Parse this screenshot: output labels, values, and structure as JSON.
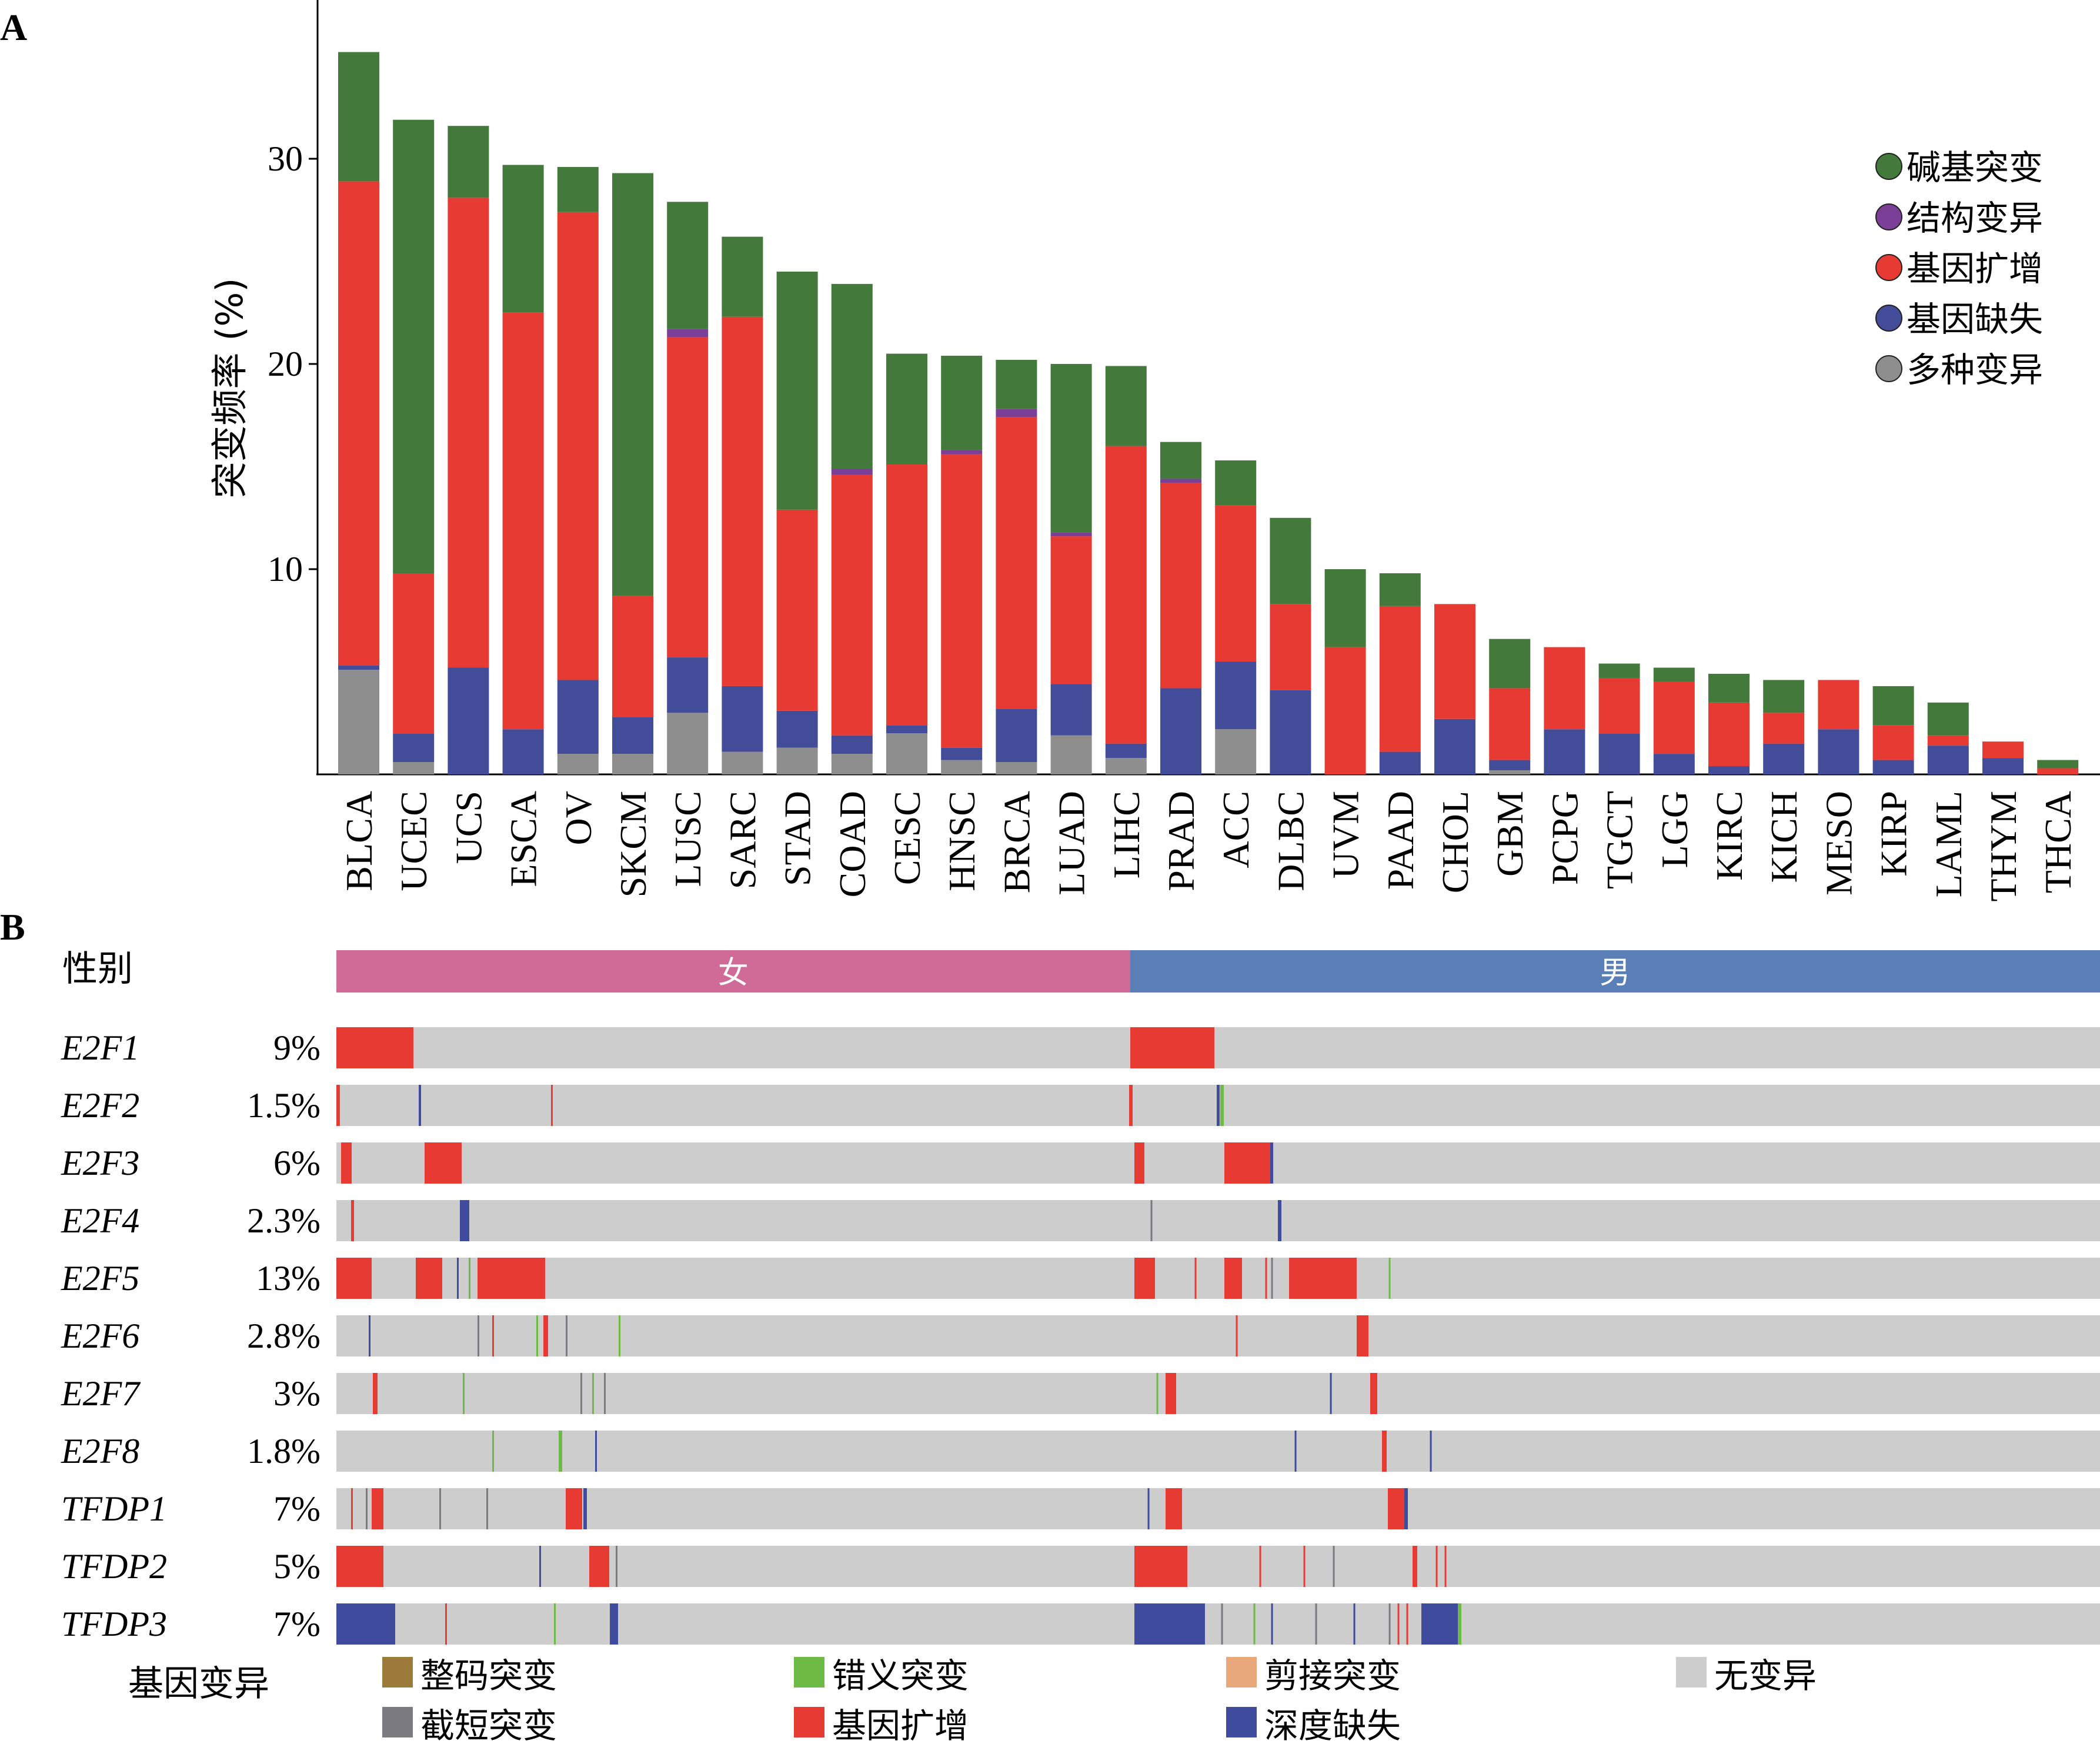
{
  "panel_a_label": "A",
  "panel_b_label": "B",
  "colors": {
    "base_mutation": "#437a3c",
    "structural_variant": "#7b3f98",
    "amplification": "#e63a33",
    "deletion": "#434c98",
    "multiple": "#8e8e8e",
    "inframe": "#9b7a3a",
    "missense": "#6dba44",
    "splice": "#e9a87c",
    "truncating": "#7a7a80",
    "deep_deletion": "#3f4b9c",
    "no_alteration": "#cdcdcd",
    "female": "#cf6b96",
    "male": "#5a7fb7"
  },
  "chart_data": [
    {
      "type": "bar",
      "stacked": true,
      "ylabel": "突变频率 (%)",
      "yticks": [
        10,
        20,
        30
      ],
      "ylim": [
        0,
        36.5
      ],
      "categories": [
        "BLCA",
        "UCEC",
        "UCS",
        "ESCA",
        "OV",
        "SKCM",
        "LUSC",
        "SARC",
        "STAD",
        "COAD",
        "CESC",
        "HNSC",
        "BRCA",
        "LUAD",
        "LIHC",
        "PRAD",
        "ACC",
        "DLBC",
        "UVM",
        "PAAD",
        "CHOL",
        "GBM",
        "PCPG",
        "TGCT",
        "LGG",
        "KIRC",
        "KICH",
        "MESO",
        "KIRP",
        "LAML",
        "THYM",
        "THCA"
      ],
      "series": [
        {
          "name": "多种变异",
          "color": "#8e8e8e",
          "values": [
            5.1,
            0.6,
            0,
            0,
            1.0,
            1.0,
            3.0,
            1.1,
            1.3,
            1.0,
            2.0,
            0.7,
            0.6,
            1.9,
            0.8,
            0,
            2.2,
            0,
            0,
            0,
            0,
            0.2,
            0,
            0,
            0,
            0,
            0,
            0,
            0,
            0,
            0,
            0
          ]
        },
        {
          "name": "基因缺失",
          "color": "#434c98",
          "values": [
            0.2,
            1.4,
            5.2,
            2.2,
            3.6,
            1.8,
            2.7,
            3.2,
            1.8,
            0.9,
            0.4,
            0.6,
            2.6,
            2.5,
            0.7,
            4.2,
            3.3,
            4.1,
            0,
            1.1,
            2.7,
            0.5,
            2.2,
            2.0,
            1.0,
            0.4,
            1.5,
            2.2,
            0.7,
            1.4,
            0.8,
            0
          ]
        },
        {
          "name": "基因扩增",
          "color": "#e63a33",
          "values": [
            23.6,
            7.8,
            22.9,
            20.3,
            22.8,
            5.9,
            15.6,
            18.0,
            9.8,
            12.7,
            12.7,
            14.3,
            14.2,
            7.2,
            14.5,
            10.0,
            7.6,
            4.2,
            6.2,
            7.1,
            5.6,
            3.5,
            4.0,
            2.7,
            3.5,
            3.1,
            1.5,
            2.4,
            1.7,
            0.5,
            0.8,
            0.3
          ]
        },
        {
          "name": "结构变异",
          "color": "#7b3f98",
          "values": [
            0,
            0,
            0,
            0,
            0,
            0,
            0.4,
            0,
            0,
            0.3,
            0,
            0.2,
            0.4,
            0.2,
            0,
            0.2,
            0,
            0,
            0,
            0,
            0,
            0,
            0,
            0,
            0,
            0,
            0,
            0,
            0,
            0,
            0,
            0
          ]
        },
        {
          "name": "碱基突变",
          "color": "#437a3c",
          "values": [
            6.3,
            22.1,
            3.5,
            7.2,
            2.2,
            20.6,
            6.2,
            3.9,
            11.6,
            9.0,
            5.4,
            4.6,
            2.4,
            8.2,
            3.9,
            1.8,
            2.2,
            4.2,
            3.8,
            1.6,
            0,
            2.4,
            0,
            0.7,
            0.7,
            1.4,
            1.6,
            0,
            1.9,
            1.6,
            0,
            0.4
          ]
        }
      ],
      "legend_position": "right",
      "legend": [
        "碱基突变",
        "结构变异",
        "基因扩增",
        "基因缺失",
        "多种变异"
      ]
    },
    {
      "type": "heatmap",
      "track_label": "性别",
      "groups": [
        {
          "label": "女",
          "fraction": 0.45,
          "color": "#cf6b96"
        },
        {
          "label": "男",
          "fraction": 0.55,
          "color": "#5a7fb7"
        }
      ],
      "genes": [
        {
          "name": "E2F1",
          "pct": "9%"
        },
        {
          "name": "E2F2",
          "pct": "1.5%"
        },
        {
          "name": "E2F3",
          "pct": "6%"
        },
        {
          "name": "E2F4",
          "pct": "2.3%"
        },
        {
          "name": "E2F5",
          "pct": "13%"
        },
        {
          "name": "E2F6",
          "pct": "2.8%"
        },
        {
          "name": "E2F7",
          "pct": "3%"
        },
        {
          "name": "E2F8",
          "pct": "1.8%"
        },
        {
          "name": "TFDP1",
          "pct": "7%"
        },
        {
          "name": "TFDP2",
          "pct": "5%"
        },
        {
          "name": "TFDP3",
          "pct": "7%"
        }
      ],
      "legend_title": "基因变异",
      "legend": [
        {
          "label": "整码突变",
          "color": "#9b7a3a"
        },
        {
          "label": "截短突变",
          "color": "#7a7a80"
        },
        {
          "label": "错义突变",
          "color": "#6dba44"
        },
        {
          "label": "基因扩增",
          "color": "#e63a33"
        },
        {
          "label": "剪接突变",
          "color": "#e9a87c"
        },
        {
          "label": "深度缺失",
          "color": "#3f4b9c"
        },
        {
          "label": "无变异",
          "color": "#cdcdcd"
        }
      ]
    }
  ]
}
